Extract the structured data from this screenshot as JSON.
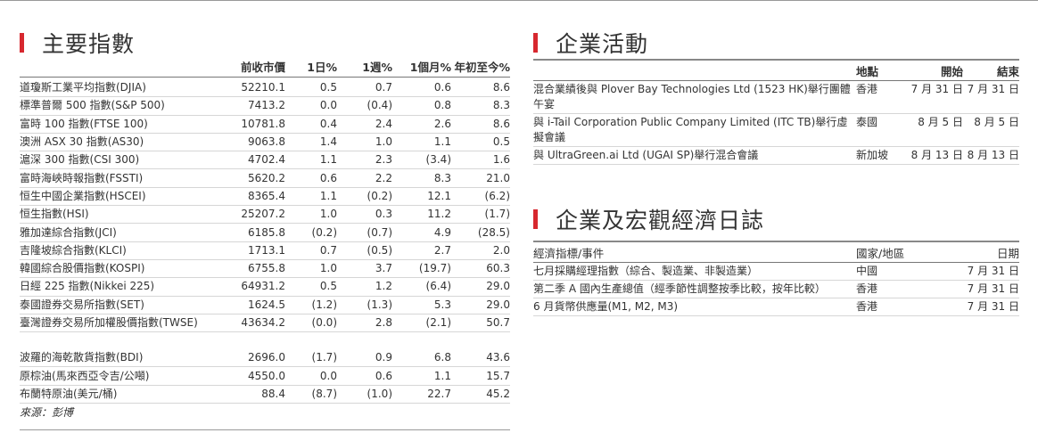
{
  "indices": {
    "title": "主要指數",
    "headers": {
      "prev_close": "前收市價",
      "d1": "1日%",
      "w1": "1週%",
      "m1": "1個月%",
      "ytd": "年初至今%"
    },
    "rows": [
      {
        "name": "道瓊斯工業平均指數(DJIA)",
        "prev": "52210.1",
        "d1": "0.5",
        "w1": "0.7",
        "m1": "0.6",
        "ytd": "8.6"
      },
      {
        "name": "標準普爾 500 指數(S&P 500)",
        "prev": "7413.2",
        "d1": "0.0",
        "w1": "(0.4)",
        "m1": "0.8",
        "ytd": "8.3"
      },
      {
        "name": "富時 100 指數(FTSE 100)",
        "prev": "10781.8",
        "d1": "0.4",
        "w1": "2.4",
        "m1": "2.6",
        "ytd": "8.6"
      },
      {
        "name": "澳洲 ASX 30 指數(AS30)",
        "prev": "9063.8",
        "d1": "1.4",
        "w1": "1.0",
        "m1": "1.1",
        "ytd": "0.5"
      },
      {
        "name": "滬深 300 指數(CSI 300)",
        "prev": "4702.4",
        "d1": "1.1",
        "w1": "2.3",
        "m1": "(3.4)",
        "ytd": "1.6"
      },
      {
        "name": "富時海峽時報指數(FSSTI)",
        "prev": "5620.2",
        "d1": "0.6",
        "w1": "2.2",
        "m1": "8.3",
        "ytd": "21.0"
      },
      {
        "name": "恒生中國企業指數(HSCEI)",
        "prev": "8365.4",
        "d1": "1.1",
        "w1": "(0.2)",
        "m1": "12.1",
        "ytd": "(6.2)"
      },
      {
        "name": "恒生指數(HSI)",
        "prev": "25207.2",
        "d1": "1.0",
        "w1": "0.3",
        "m1": "11.2",
        "ytd": "(1.7)"
      },
      {
        "name": "雅加達綜合指數(JCI)",
        "prev": "6185.8",
        "d1": "(0.2)",
        "w1": "(0.7)",
        "m1": "4.9",
        "ytd": "(28.5)"
      },
      {
        "name": "吉隆坡綜合指數(KLCI)",
        "prev": "1713.1",
        "d1": "0.7",
        "w1": "(0.5)",
        "m1": "2.7",
        "ytd": "2.0"
      },
      {
        "name": "韓國綜合股價指數(KOSPI)",
        "prev": "6755.8",
        "d1": "1.0",
        "w1": "3.7",
        "m1": "(19.7)",
        "ytd": "60.3"
      },
      {
        "name": "日經 225 指數(Nikkei 225)",
        "prev": "64931.2",
        "d1": "0.5",
        "w1": "1.2",
        "m1": "(6.4)",
        "ytd": "29.0"
      },
      {
        "name": "泰國證券交易所指數(SET)",
        "prev": "1624.5",
        "d1": "(1.2)",
        "w1": "(1.3)",
        "m1": "5.3",
        "ytd": "29.0"
      },
      {
        "name": "臺灣證券交易所加權股價指數(TWSE)",
        "prev": "43634.2",
        "d1": "(0.0)",
        "w1": "2.8",
        "m1": "(2.1)",
        "ytd": "50.7"
      }
    ],
    "commodities": [
      {
        "name": "波羅的海乾散貨指數(BDI)",
        "prev": "2696.0",
        "d1": "(1.7)",
        "w1": "0.9",
        "m1": "6.8",
        "ytd": "43.6"
      },
      {
        "name": "原棕油(馬來西亞令吉/公噸)",
        "prev": "4550.0",
        "d1": "0.0",
        "w1": "0.6",
        "m1": "1.1",
        "ytd": "15.7"
      },
      {
        "name": "布蘭特原油(美元/桶)",
        "prev": "88.4",
        "d1": "(8.7)",
        "w1": "(1.0)",
        "m1": "22.7",
        "ytd": "45.2"
      }
    ],
    "source": "來源：彭博"
  },
  "corporate": {
    "title": "企業活動",
    "headers": {
      "event": "",
      "location": "地點",
      "start": "開始",
      "end": "結束"
    },
    "rows": [
      {
        "event": "混合業績後與 Plover Bay Technologies Ltd (1523 HK)舉行團體午宴",
        "location": "香港",
        "start": "7 月 31 日",
        "end": "7 月 31 日"
      },
      {
        "event": "與 i-Tail Corporation Public Company Limited (ITC TB)舉行虛擬會議",
        "location": "泰國",
        "start": "8 月 5 日",
        "end": "8 月 5 日"
      },
      {
        "event": "與 UltraGreen.ai Ltd (UGAI SP)舉行混合會議",
        "location": "新加坡",
        "start": "8 月 13 日",
        "end": "8 月 13 日"
      }
    ]
  },
  "macro": {
    "title": "企業及宏觀經濟日誌",
    "headers": {
      "event": "經濟指標/事件",
      "region": "國家/地區",
      "date": "日期"
    },
    "rows": [
      {
        "event": "七月採購經理指數（綜合、製造業、非製造業）",
        "region": "中國",
        "date": "7 月 31 日"
      },
      {
        "event": "第二季 A 國內生產總值（經季節性調整按季比較，按年比較）",
        "region": "香港",
        "date": "7 月 31 日"
      },
      {
        "event": "6 月貨幣供應量(M1, M2, M3)",
        "region": "香港",
        "date": "7 月 31 日"
      }
    ]
  }
}
